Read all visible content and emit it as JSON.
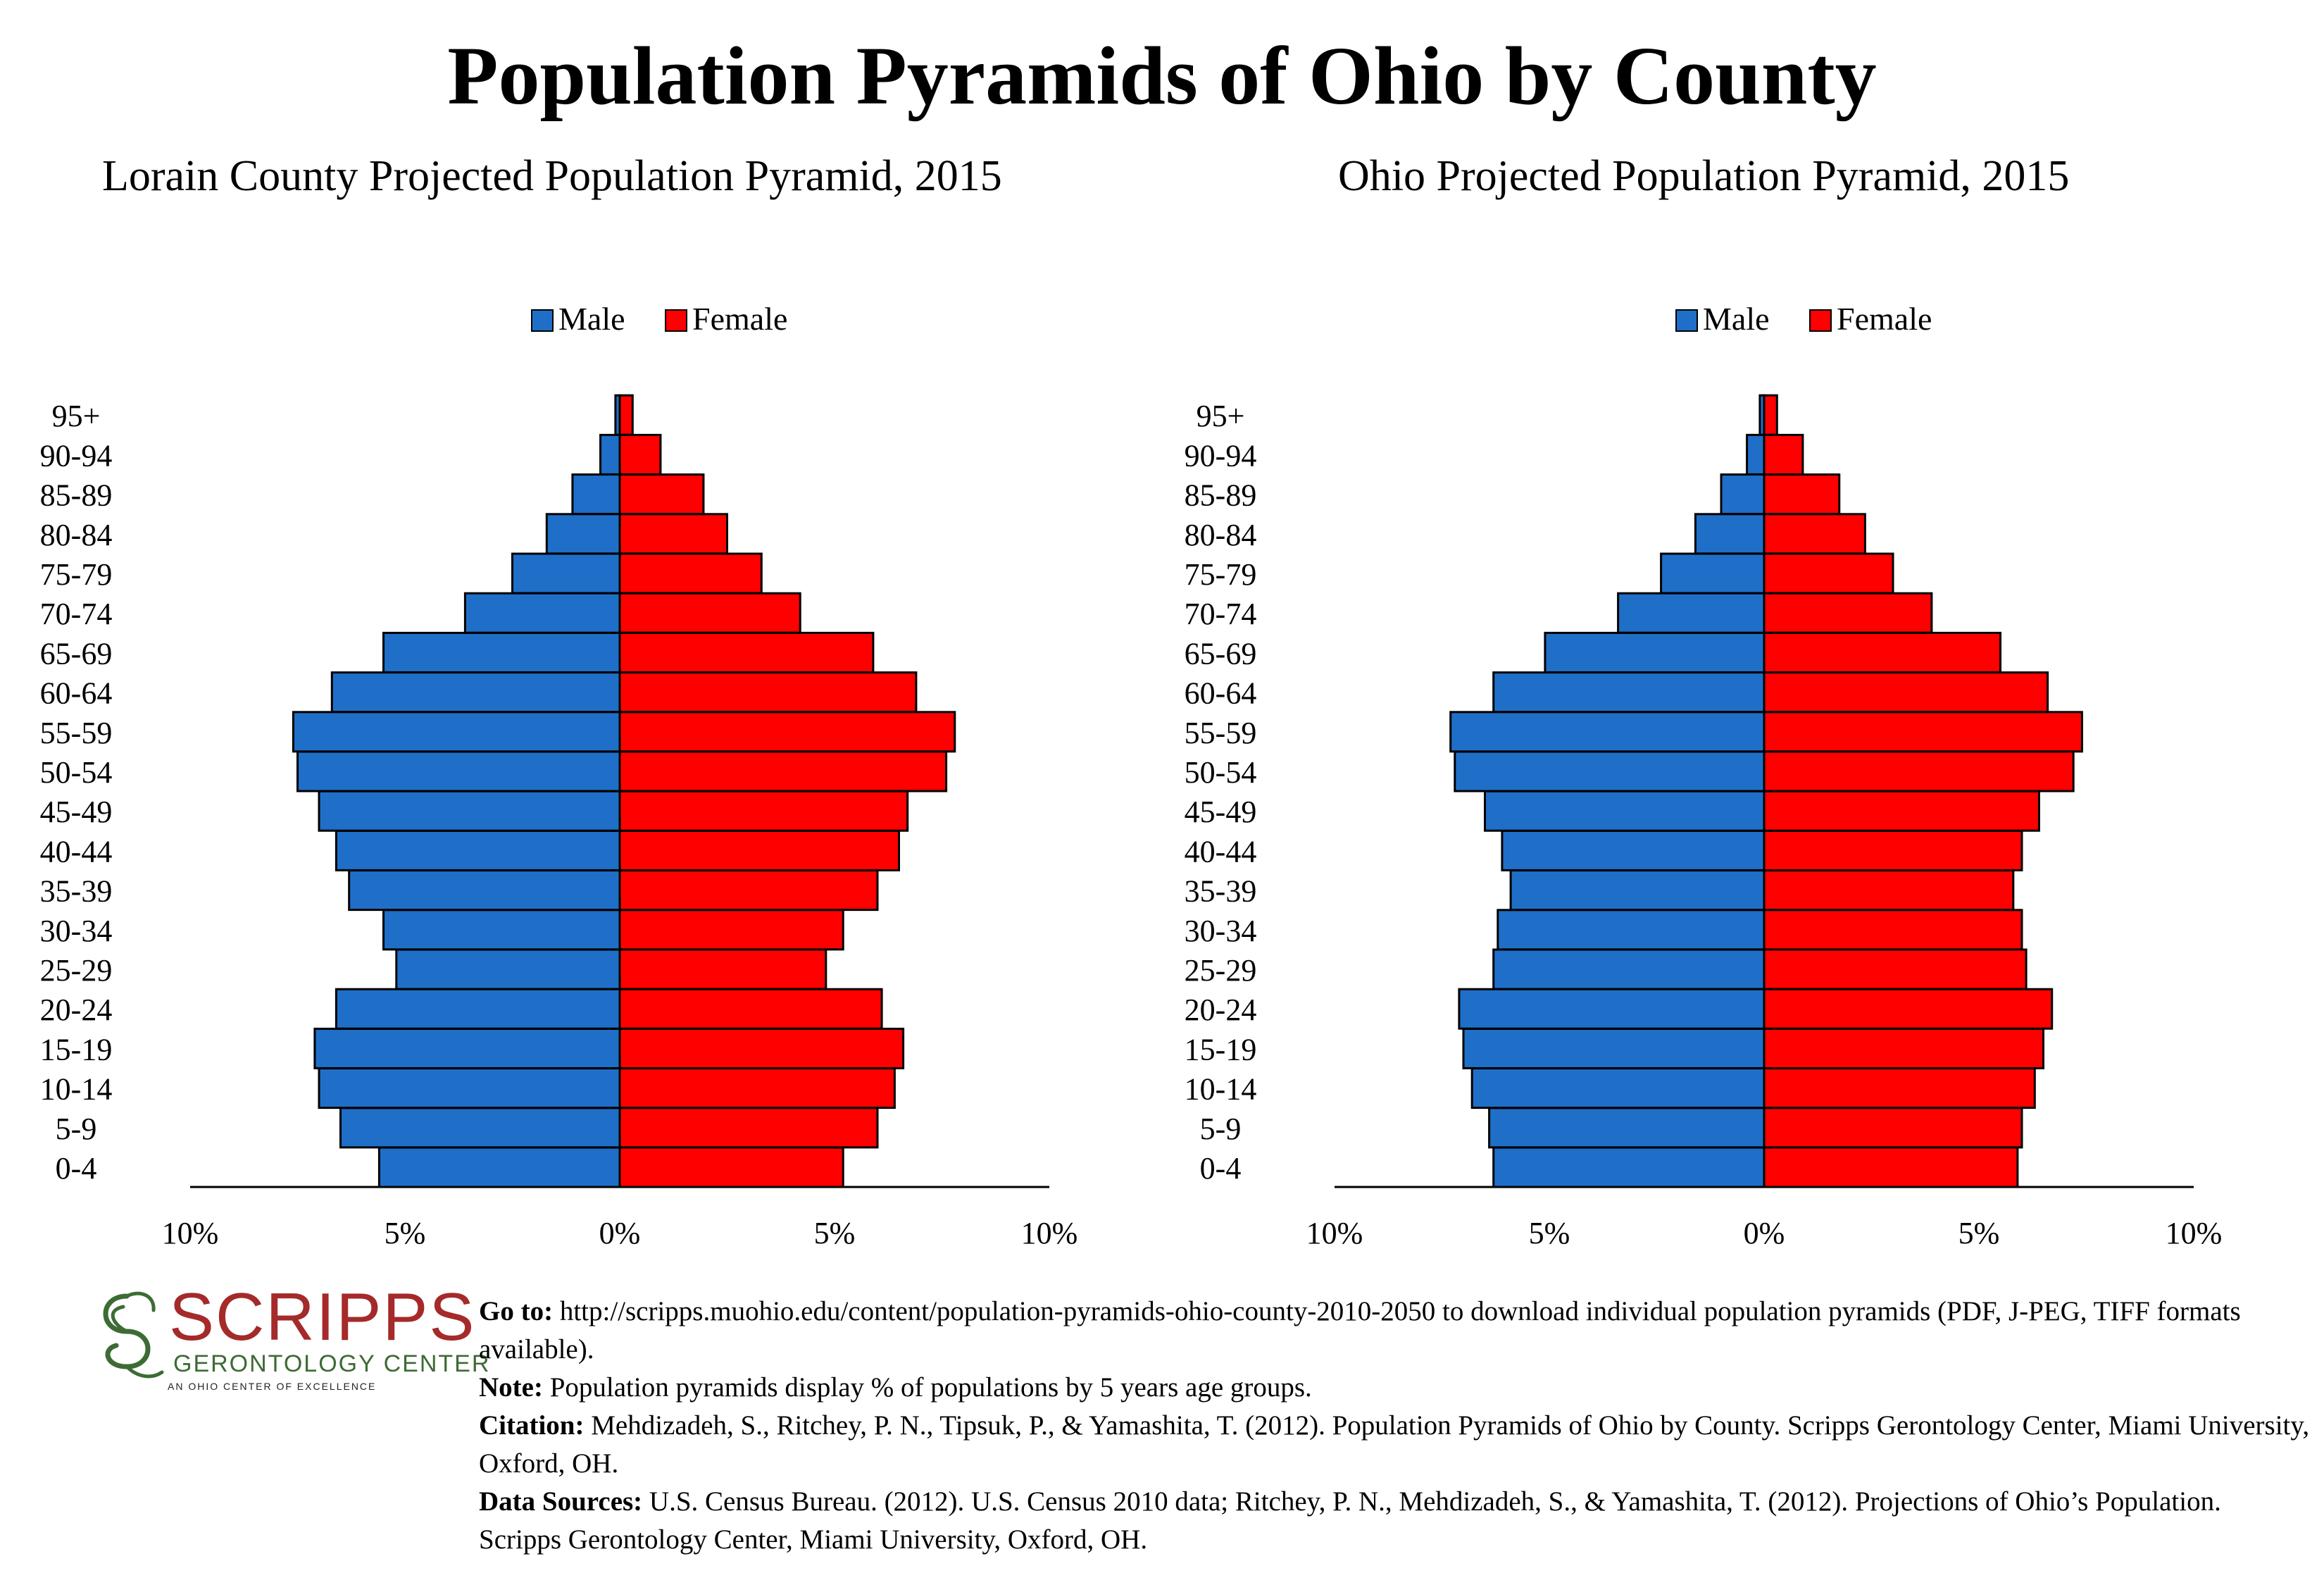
{
  "title": "Population Pyramids of Ohio by County",
  "legend": {
    "male": "Male",
    "female": "Female"
  },
  "colors": {
    "male": "#1f6fc8",
    "female": "#ff0000",
    "outline": "#000000"
  },
  "chart_data": [
    {
      "type": "bar",
      "orientation": "horizontal-pyramid",
      "title": "Lorain County Projected Population Pyramid, 2015",
      "categories": [
        "0-4",
        "5-9",
        "10-14",
        "15-19",
        "20-24",
        "25-29",
        "30-34",
        "35-39",
        "40-44",
        "45-49",
        "50-54",
        "55-59",
        "60-64",
        "65-69",
        "70-74",
        "75-79",
        "80-84",
        "85-89",
        "90-94",
        "95+"
      ],
      "series": [
        {
          "name": "Male",
          "values": [
            5.6,
            6.5,
            7.0,
            7.1,
            6.6,
            5.2,
            5.5,
            6.3,
            6.6,
            7.0,
            7.5,
            7.6,
            6.7,
            5.5,
            3.6,
            2.5,
            1.7,
            1.1,
            0.45,
            0.1
          ]
        },
        {
          "name": "Female",
          "values": [
            5.2,
            6.0,
            6.4,
            6.6,
            6.1,
            4.8,
            5.2,
            6.0,
            6.5,
            6.7,
            7.6,
            7.8,
            6.9,
            5.9,
            4.2,
            3.3,
            2.5,
            1.95,
            0.95,
            0.3
          ]
        }
      ],
      "xlim": [
        -10,
        10
      ],
      "tick_labels": [
        "10%",
        "5%",
        "0%",
        "5%",
        "10%"
      ],
      "legend_position": "top-center"
    },
    {
      "type": "bar",
      "orientation": "horizontal-pyramid",
      "title": "Ohio Projected Population Pyramid, 2015",
      "categories": [
        "0-4",
        "5-9",
        "10-14",
        "15-19",
        "20-24",
        "25-29",
        "30-34",
        "35-39",
        "40-44",
        "45-49",
        "50-54",
        "55-59",
        "60-64",
        "65-69",
        "70-74",
        "75-79",
        "80-84",
        "85-89",
        "90-94",
        "95+"
      ],
      "series": [
        {
          "name": "Male",
          "values": [
            6.3,
            6.4,
            6.8,
            7.0,
            7.1,
            6.3,
            6.2,
            5.9,
            6.1,
            6.5,
            7.2,
            7.3,
            6.3,
            5.1,
            3.4,
            2.4,
            1.6,
            1.0,
            0.4,
            0.1
          ]
        },
        {
          "name": "Female",
          "values": [
            5.9,
            6.0,
            6.3,
            6.5,
            6.7,
            6.1,
            6.0,
            5.8,
            6.0,
            6.4,
            7.2,
            7.4,
            6.6,
            5.5,
            3.9,
            3.0,
            2.35,
            1.75,
            0.9,
            0.3
          ]
        }
      ],
      "xlim": [
        -10,
        10
      ],
      "tick_labels": [
        "10%",
        "5%",
        "0%",
        "5%",
        "10%"
      ],
      "legend_position": "top-center"
    }
  ],
  "logo": {
    "name": "SCRIPPS",
    "subtitle": "GERONTOLOGY CENTER",
    "tagline": "AN OHIO CENTER OF EXCELLENCE",
    "brand_red": "#a52a2a",
    "brand_green": "#3d6b34"
  },
  "footer": {
    "goto_label": "Go to:",
    "goto_text": "http://scripps.muohio.edu/content/population-pyramids-ohio-county-2010-2050 to download individual population pyramids (PDF, J-PEG, TIFF formats available).",
    "note_label": "Note:",
    "note_text": "Population pyramids display % of populations by 5 years age groups.",
    "citation_label": "Citation:",
    "citation_text": "Mehdizadeh, S., Ritchey, P. N., Tipsuk, P., & Yamashita, T. (2012). Population Pyramids of Ohio by County. Scripps Gerontology Center, Miami University, Oxford, OH.",
    "sources_label": "Data Sources:",
    "sources_text": "U.S. Census Bureau. (2012). U.S. Census 2010 data; Ritchey, P. N., Mehdizadeh, S., & Yamashita, T. (2012). Projections of Ohio’s Population. Scripps Gerontology Center, Miami University, Oxford, OH."
  }
}
